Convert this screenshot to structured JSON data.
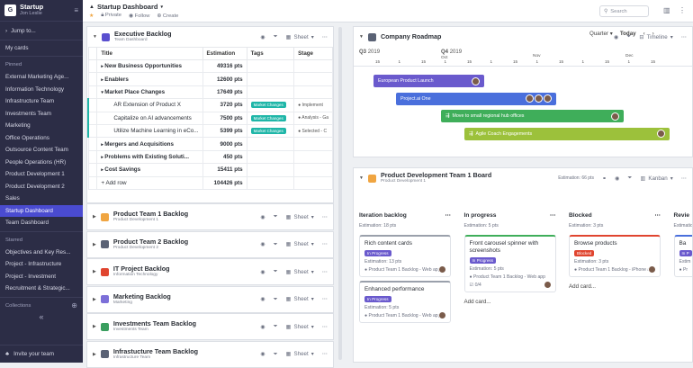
{
  "sidebar": {
    "workspace": "Startup",
    "user": "Jon Leslie",
    "jump": "Jump to...",
    "my_cards": "My cards",
    "pinned_label": "Pinned",
    "pinned": [
      "External Marketing Age...",
      "Information Technology",
      "Infrastructure Team",
      "Investments Team",
      "Marketing",
      "Office Operations",
      "Outsource Content Team",
      "People Operations (HR)",
      "Product Development 1",
      "Product Development 2",
      "Sales",
      "Startup Dashboard",
      "Team Dashboard"
    ],
    "active_index": 11,
    "starred_label": "Starred",
    "starred": [
      "Objectives and Key Res...",
      "Project - Infrastructure",
      "Project - Investment",
      "Recruitment & Strategic..."
    ],
    "collections_label": "Collections",
    "invite": "Invite your team"
  },
  "topbar": {
    "title": "Startup Dashboard",
    "private": "Private",
    "follow": "Follow",
    "create": "Create",
    "search_placeholder": "Search"
  },
  "exec_backlog": {
    "title": "Executive Backlog",
    "subtitle": "Team Dashboard",
    "view": "Sheet",
    "columns": [
      "Title",
      "Estimation",
      "Tags",
      "Stage"
    ],
    "rows": [
      {
        "title": "New Business Opportunities",
        "est": "49316 pts",
        "tag": "",
        "stage": "",
        "prefix": "▸",
        "level": 0
      },
      {
        "title": "Enablers",
        "est": "12600 pts",
        "tag": "",
        "stage": "",
        "prefix": "▸",
        "level": 0
      },
      {
        "title": "Market Place Changes",
        "est": "17649 pts",
        "tag": "",
        "stage": "",
        "prefix": "▾",
        "level": 0
      },
      {
        "title": "AR Extension of Product X",
        "est": "3720 pts",
        "tag": "Market Changes",
        "stage": "Implement",
        "prefix": "",
        "level": 1
      },
      {
        "title": "Capitalize on AI advancements",
        "est": "7500 pts",
        "tag": "Market Changes",
        "stage": "Analysis - Ga",
        "prefix": "",
        "level": 1
      },
      {
        "title": "Utilize Machine Learning in eCo...",
        "est": "5399 pts",
        "tag": "Market Changes",
        "stage": "Selected - C",
        "prefix": "",
        "level": 1
      },
      {
        "title": "Mergers and Acquisitions",
        "est": "9000 pts",
        "tag": "",
        "stage": "",
        "prefix": "▸",
        "level": 0
      },
      {
        "title": "Problems with Existing Soluti...",
        "est": "450 pts",
        "tag": "",
        "stage": "",
        "prefix": "▸",
        "level": 0
      },
      {
        "title": "Cost Savings",
        "est": "15411 pts",
        "tag": "",
        "stage": "",
        "prefix": "▸",
        "level": 0
      }
    ],
    "add_row": "Add row",
    "total": "104426 pts"
  },
  "backlogs": [
    {
      "title": "Product Team 1 Backlog",
      "subtitle": "Product Development 1",
      "color": "#f0a541",
      "view": "Sheet"
    },
    {
      "title": "Product Team 2 Backlog",
      "subtitle": "Product Development 2",
      "color": "#5a6275",
      "view": "Sheet"
    },
    {
      "title": "IT Project Backlog",
      "subtitle": "Information Technology",
      "color": "#e0452f",
      "view": "Sheet"
    },
    {
      "title": "Marketing Backlog",
      "subtitle": "Marketing",
      "color": "#7c6fd8",
      "view": "Sheet"
    },
    {
      "title": "Investments Team Backlog",
      "subtitle": "Investments Team",
      "color": "#3a9e5f",
      "view": "Sheet"
    },
    {
      "title": "Infrastucture Team Backlog",
      "subtitle": "Infrastructure Team",
      "color": "#5a6275",
      "view": "Sheet"
    }
  ],
  "roadmap": {
    "title": "Company Roadmap",
    "view": "Timeline",
    "zoom": "Quarter",
    "today": "Today",
    "q3": "Q3",
    "q3_year": "2019",
    "q4": "Q4",
    "q4_year": "2019",
    "months": [
      "Oct",
      "Nov",
      "Dec"
    ],
    "days": [
      "15",
      "1",
      "15",
      "1",
      "15",
      "1",
      "15",
      "1",
      "15",
      "1",
      "15",
      "1",
      "15"
    ],
    "bars": [
      {
        "label": "European Product Launch",
        "color": "#6a5acd"
      },
      {
        "label": "Project.ai One",
        "color": "#4a6fdc"
      },
      {
        "label": "Move to small regional hub offices",
        "color": "#3fae5a"
      },
      {
        "label": "Agile Coach Engagements",
        "color": "#9cc13b"
      }
    ]
  },
  "board": {
    "title": "Product Development Team 1 Board",
    "subtitle": "Product Development 1",
    "estimation": "Estimation: 66 pts",
    "view": "Kanban",
    "columns": [
      {
        "name": "Iteration backlog",
        "est": "Estimation: 18 pts",
        "color": "#9aa0ab",
        "cards": [
          {
            "title": "Rich content cards",
            "badge": "In Progress",
            "badge_color": "#6a5acd",
            "pts": "Estimation: 13 pts",
            "src": "Product Team 1 Backlog - Web app"
          },
          {
            "title": "Enhanced performance",
            "badge": "In Progress",
            "badge_color": "#6a5acd",
            "pts": "Estimation: 5 pts",
            "src": "Product Team 1 Backlog - Web app"
          }
        ]
      },
      {
        "name": "In progress",
        "est": "Estimation: 5 pts",
        "color": "#3fae5a",
        "cards": [
          {
            "title": "Front carousel spinner with screenshots",
            "badge": "In Progress",
            "badge_color": "#6a5acd",
            "pts": "Estimation: 5 pts",
            "src": "Product Team 1 Backlog - Web app",
            "checklist": "0/4"
          }
        ]
      },
      {
        "name": "Blocked",
        "est": "Estimation: 3 pts",
        "color": "#e0452f",
        "cards": [
          {
            "title": "Browse products",
            "badge": "Blocked",
            "badge_color": "#e0452f",
            "pts": "Estimation: 3 pts",
            "src": "Product Team 1 Backlog - iPhone a"
          }
        ]
      },
      {
        "name": "Revie",
        "est": "Estimation:",
        "color": "#4a6fdc",
        "cards": [
          {
            "title": "Ba",
            "badge": "In P",
            "badge_color": "#6a5acd",
            "pts": "Estim",
            "src": "Pr"
          }
        ]
      }
    ],
    "add_card": "Add card..."
  }
}
